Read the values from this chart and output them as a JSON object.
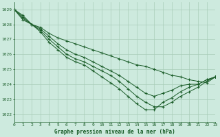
{
  "title": "Graphe pression niveau de la mer (hPa)",
  "background_color": "#cdeade",
  "grid_color": "#a8cdb8",
  "line_color": "#1a5c28",
  "marker_color": "#1a5c28",
  "xlim": [
    0,
    23
  ],
  "ylim": [
    1021.5,
    1029.5
  ],
  "yticks": [
    1022,
    1023,
    1024,
    1025,
    1026,
    1027,
    1028,
    1029
  ],
  "xticks": [
    0,
    1,
    2,
    3,
    4,
    5,
    6,
    7,
    8,
    9,
    10,
    11,
    12,
    13,
    14,
    15,
    16,
    17,
    18,
    19,
    20,
    21,
    22,
    23
  ],
  "series": [
    [
      1029.0,
      1028.6,
      1028.0,
      1027.8,
      1027.4,
      1027.1,
      1026.9,
      1026.7,
      1026.5,
      1026.3,
      1026.1,
      1025.9,
      1025.7,
      1025.5,
      1025.3,
      1025.2,
      1025.0,
      1024.8,
      1024.6,
      1024.5,
      1024.3,
      1024.2,
      1024.1,
      1024.5
    ],
    [
      1029.0,
      1028.5,
      1028.0,
      1027.7,
      1027.2,
      1026.7,
      1026.3,
      1026.0,
      1025.8,
      1025.5,
      1025.2,
      1024.9,
      1024.6,
      1024.2,
      1023.8,
      1023.4,
      1023.2,
      1023.4,
      1023.6,
      1023.9,
      1024.0,
      1024.0,
      1024.3,
      1024.5
    ],
    [
      1029.0,
      1028.4,
      1028.0,
      1027.6,
      1027.0,
      1026.5,
      1026.0,
      1025.7,
      1025.5,
      1025.2,
      1024.9,
      1024.6,
      1024.2,
      1023.7,
      1023.2,
      1022.8,
      1022.5,
      1022.5,
      1022.8,
      1023.2,
      1023.5,
      1023.8,
      1024.2,
      1024.5
    ],
    [
      1029.0,
      1028.3,
      1028.0,
      1027.5,
      1026.8,
      1026.3,
      1025.8,
      1025.5,
      1025.3,
      1024.9,
      1024.5,
      1024.1,
      1023.7,
      1023.2,
      1022.7,
      1022.3,
      1022.3,
      1022.8,
      1023.1,
      1023.5,
      1023.8,
      1024.0,
      1024.3,
      1024.5
    ]
  ]
}
